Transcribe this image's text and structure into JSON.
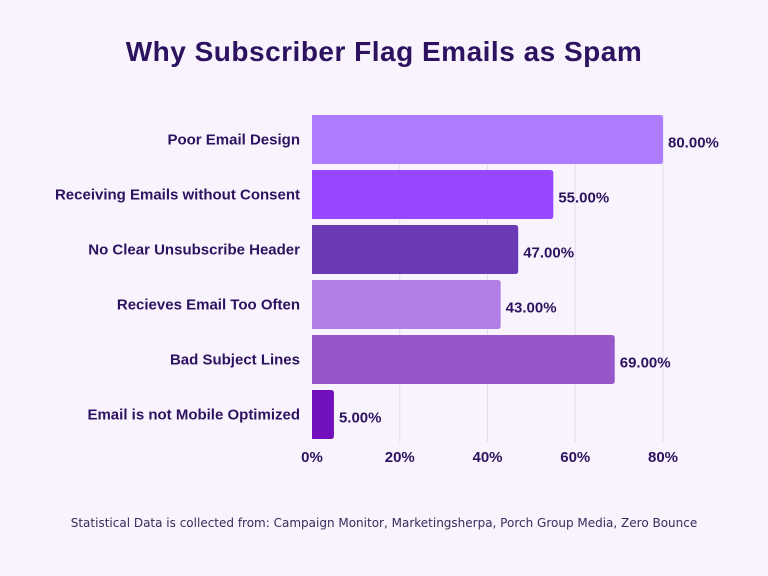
{
  "chart_data": {
    "type": "bar",
    "orientation": "horizontal",
    "title": "Why Subscriber Flag Emails as Spam",
    "categories": [
      "Poor Email Design",
      "Receiving Emails without Consent",
      "No Clear Unsubscribe Header",
      "Recieves Email Too Often",
      "Bad Subject Lines",
      "Email is not Mobile Optimized"
    ],
    "values": [
      80,
      55,
      47,
      43,
      69,
      5
    ],
    "data_labels": [
      "80.00%",
      "55.00%",
      "47.00%",
      "43.00%",
      "69.00%",
      "5.00%"
    ],
    "bar_colors": [
      "#AD7BFF",
      "#9747FF",
      "#6B3AB5",
      "#B07FE6",
      "#9757C8",
      "#7210BE"
    ],
    "xlim": [
      0,
      80
    ],
    "x_ticks": [
      0,
      20,
      40,
      60,
      80
    ],
    "x_tick_labels": [
      "0%",
      "20%",
      "40%",
      "60%",
      "80%"
    ],
    "xlabel": "",
    "ylabel": "",
    "grid": "vertical",
    "legend": "none"
  },
  "footer": "Statistical Data is collected from:  Campaign Monitor, Marketingsherpa, Porch Group Media, Zero Bounce",
  "colors": {
    "background": "#F8F3FC",
    "text": "#2D1260",
    "grid": "#E4DCEC"
  }
}
